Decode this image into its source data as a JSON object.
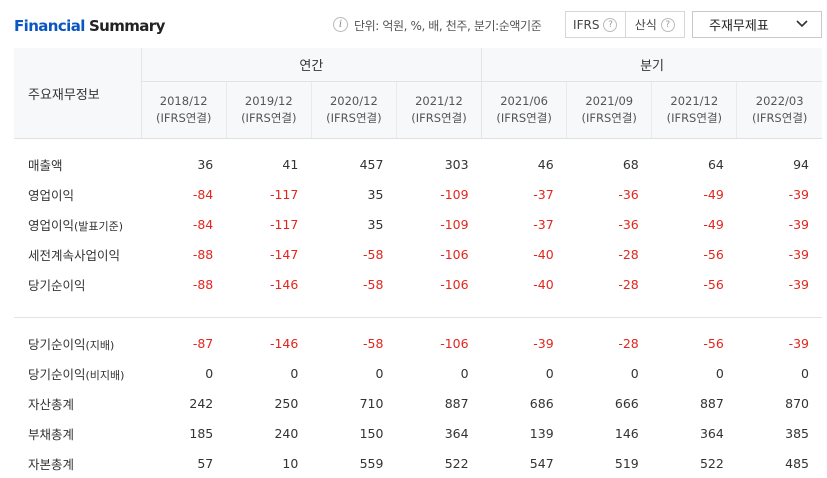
{
  "header": {
    "title_part1": "Financial",
    "title_part2": "Summary",
    "unit_text": "단위: 억원, %, 배, 천주, 분기:순액기준",
    "toggle": [
      "IFRS",
      "산식"
    ],
    "select_value": "주재무제표"
  },
  "table": {
    "label_header": "주요재무정보",
    "group_annual": "연간",
    "group_quarter": "분기",
    "columns": [
      {
        "period": "2018/12",
        "basis": "(IFRS연결)"
      },
      {
        "period": "2019/12",
        "basis": "(IFRS연결)"
      },
      {
        "period": "2020/12",
        "basis": "(IFRS연결)"
      },
      {
        "period": "2021/12",
        "basis": "(IFRS연결)"
      },
      {
        "period": "2021/06",
        "basis": "(IFRS연결)"
      },
      {
        "period": "2021/09",
        "basis": "(IFRS연결)"
      },
      {
        "period": "2021/12",
        "basis": "(IFRS연결)"
      },
      {
        "period": "2022/03",
        "basis": "(IFRS연결)"
      }
    ],
    "rows_group1": [
      {
        "label": "매출액",
        "label_small": "",
        "values": [
          "36",
          "41",
          "457",
          "303",
          "46",
          "68",
          "64",
          "94"
        ]
      },
      {
        "label": "영업이익",
        "label_small": "",
        "values": [
          "-84",
          "-117",
          "35",
          "-109",
          "-37",
          "-36",
          "-49",
          "-39"
        ]
      },
      {
        "label": "영업이익",
        "label_small": "(발표기준)",
        "values": [
          "-84",
          "-117",
          "35",
          "-109",
          "-37",
          "-36",
          "-49",
          "-39"
        ]
      },
      {
        "label": "세전계속사업이익",
        "label_small": "",
        "values": [
          "-88",
          "-147",
          "-58",
          "-106",
          "-40",
          "-28",
          "-56",
          "-39"
        ]
      },
      {
        "label": "당기순이익",
        "label_small": "",
        "values": [
          "-88",
          "-146",
          "-58",
          "-106",
          "-40",
          "-28",
          "-56",
          "-39"
        ]
      }
    ],
    "rows_group2": [
      {
        "label": "당기순이익",
        "label_small": "(지배)",
        "values": [
          "-87",
          "-146",
          "-58",
          "-106",
          "-39",
          "-28",
          "-56",
          "-39"
        ]
      },
      {
        "label": "당기순이익",
        "label_small": "(비지배)",
        "values": [
          "0",
          "0",
          "0",
          "0",
          "0",
          "0",
          "0",
          "0"
        ]
      },
      {
        "label": "자산총계",
        "label_small": "",
        "values": [
          "242",
          "250",
          "710",
          "887",
          "686",
          "666",
          "887",
          "870"
        ]
      },
      {
        "label": "부채총계",
        "label_small": "",
        "values": [
          "185",
          "240",
          "150",
          "364",
          "139",
          "146",
          "364",
          "385"
        ]
      },
      {
        "label": "자본총계",
        "label_small": "",
        "values": [
          "57",
          "10",
          "559",
          "522",
          "547",
          "519",
          "522",
          "485"
        ]
      }
    ]
  },
  "colors": {
    "title_accent": "#0a56c2",
    "negative": "#e2261e",
    "header_bg": "#f7f8fa"
  },
  "icons": {
    "info": "info-icon",
    "help": "question-icon",
    "dropdown": "chevron-down-icon"
  }
}
